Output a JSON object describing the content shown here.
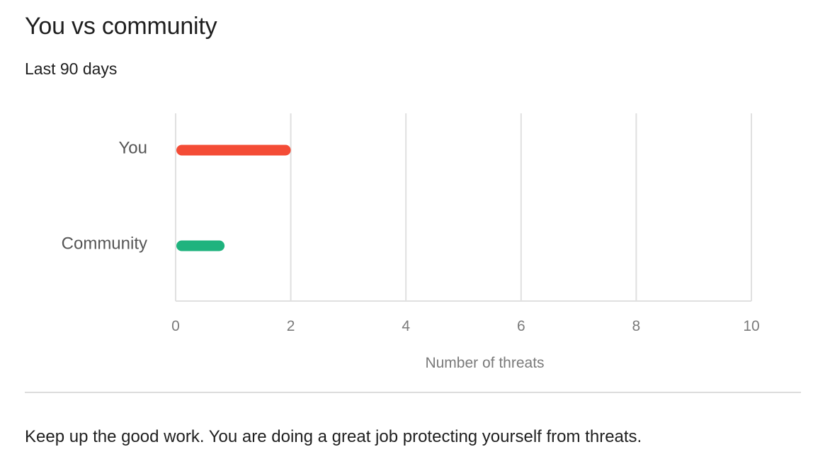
{
  "header": {
    "title": "You vs community",
    "subtitle": "Last 90 days"
  },
  "chart_data": {
    "type": "bar",
    "orientation": "horizontal",
    "categories": [
      "You",
      "Community"
    ],
    "series": [
      {
        "values": [
          2,
          0.85
        ]
      }
    ],
    "bar_colors": [
      "#f44c36",
      "#1fb37e"
    ],
    "xlabel": "Number of threats",
    "ylabel": "",
    "xlim": [
      0,
      10
    ],
    "xticks": [
      "0",
      "2",
      "4",
      "6",
      "8",
      "10"
    ],
    "grid": true
  },
  "footer": {
    "message": "Keep up the good work. You are doing a great job protecting yourself from threats."
  }
}
